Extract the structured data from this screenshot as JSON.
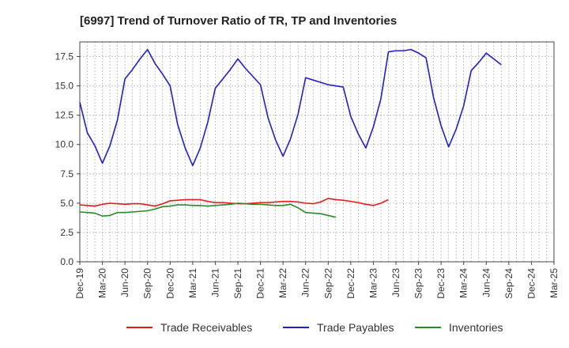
{
  "chart_data": {
    "type": "line",
    "title": "[6997]  Trend of Turnover Ratio of TR, TP and Inventories",
    "xlabel": "",
    "ylabel": "",
    "ylim": [
      0,
      18.75
    ],
    "yticks": [
      "0.0",
      "2.5",
      "5.0",
      "7.5",
      "10.0",
      "12.5",
      "15.0",
      "17.5"
    ],
    "xticks": [
      "Dec-19",
      "Mar-20",
      "Jun-20",
      "Sep-20",
      "Dec-20",
      "Mar-21",
      "Jun-21",
      "Sep-21",
      "Dec-21",
      "Mar-22",
      "Jun-22",
      "Sep-22",
      "Dec-22",
      "Mar-23",
      "Jun-23",
      "Sep-23",
      "Dec-23",
      "Mar-24",
      "Jun-24",
      "Sep-24",
      "Dec-24",
      "Mar-25"
    ],
    "grid": true,
    "legend_position": "bottom",
    "series": [
      {
        "name": "Trade Receivables",
        "color": "#e8191c",
        "values": [
          4.85,
          4.8,
          4.75,
          4.9,
          5.0,
          4.95,
          4.9,
          4.95,
          4.95,
          4.85,
          4.75,
          4.95,
          5.2,
          5.25,
          5.3,
          5.3,
          5.3,
          5.15,
          5.05,
          5.05,
          5.0,
          4.95,
          4.95,
          5.0,
          5.05,
          5.05,
          5.1,
          5.15,
          5.15,
          5.1,
          5.0,
          4.95,
          5.1,
          5.4,
          5.3,
          5.25,
          5.15,
          5.05,
          4.9,
          4.8,
          5.0,
          5.3
        ]
      },
      {
        "name": "Trade Payables",
        "color": "#1f1fd1",
        "values": [
          13.6,
          11.0,
          9.9,
          8.4,
          9.9,
          12.1,
          15.6,
          16.4,
          17.3,
          18.1,
          16.9,
          16.0,
          15.0,
          11.7,
          9.7,
          8.2,
          9.7,
          11.9,
          14.8,
          15.6,
          16.4,
          17.3,
          16.5,
          15.8,
          15.1,
          12.3,
          10.4,
          9.0,
          10.5,
          12.6,
          15.7,
          15.5,
          15.3,
          15.1,
          15.0,
          14.9,
          12.4,
          10.9,
          9.7,
          11.5,
          13.9,
          17.9,
          18.0,
          18.0,
          18.1,
          17.8,
          17.4,
          14.0,
          11.6,
          9.8,
          11.3,
          13.3,
          16.3,
          17.0,
          17.8,
          17.3,
          16.8
        ]
      },
      {
        "name": "Inventories",
        "color": "#2a8a2a",
        "values": [
          4.25,
          4.2,
          4.15,
          3.9,
          3.95,
          4.2,
          4.2,
          4.25,
          4.3,
          4.35,
          4.5,
          4.7,
          4.75,
          4.85,
          4.85,
          4.8,
          4.8,
          4.75,
          4.8,
          4.85,
          4.9,
          5.0,
          4.95,
          4.9,
          4.9,
          4.85,
          4.8,
          4.8,
          4.9,
          4.6,
          4.2,
          4.15,
          4.1,
          3.95,
          3.8
        ]
      }
    ]
  }
}
